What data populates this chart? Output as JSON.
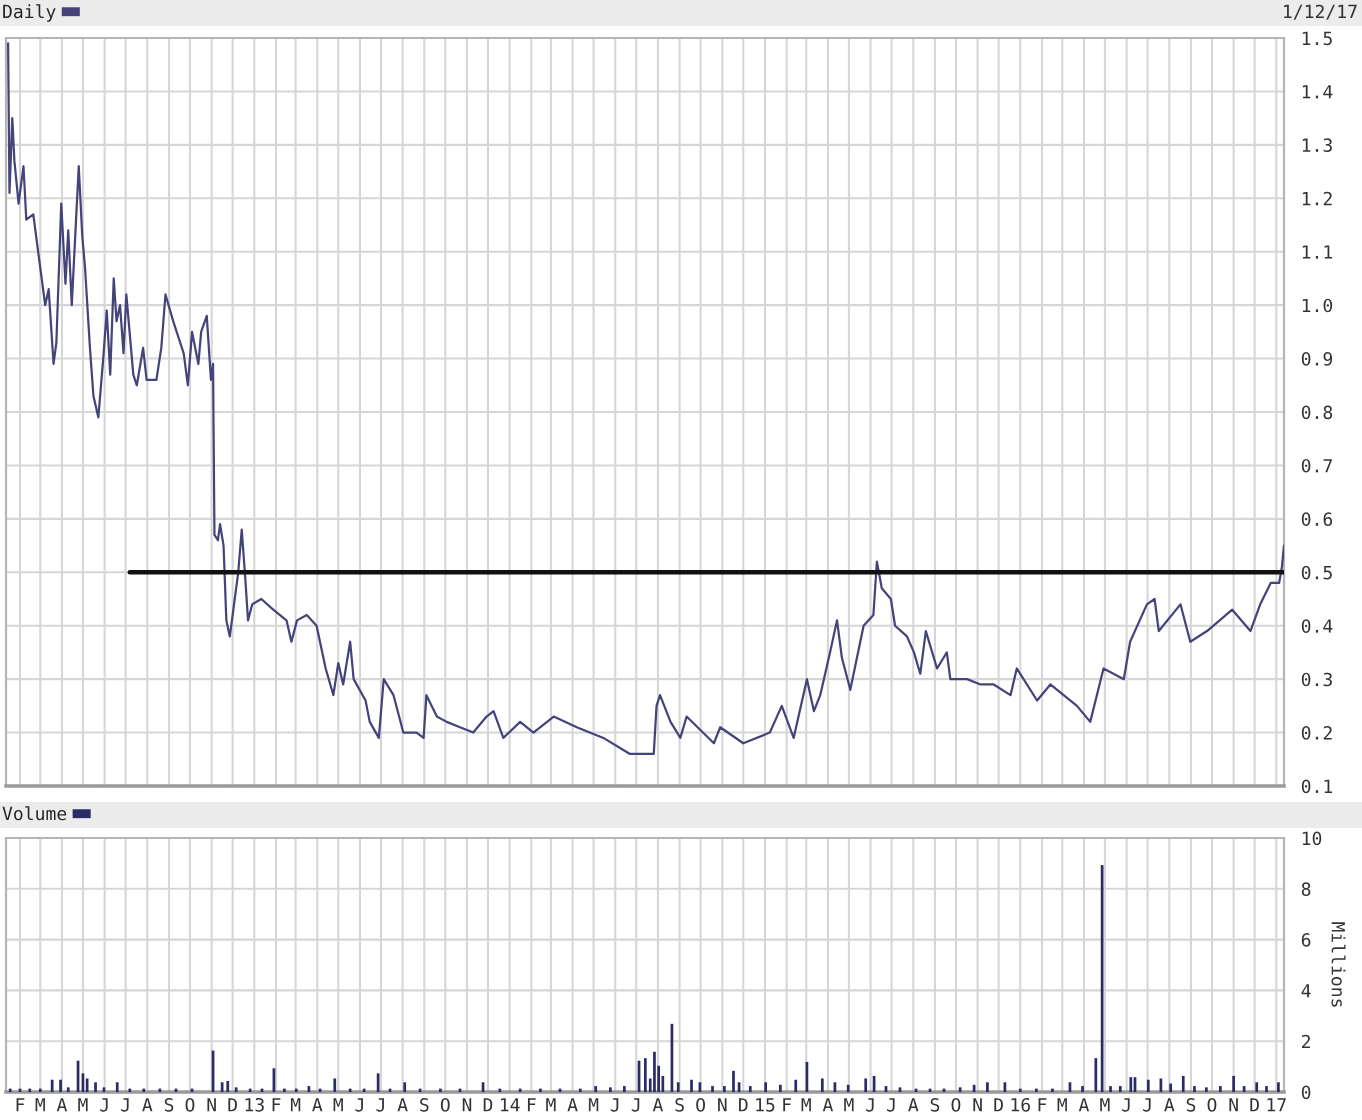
{
  "chart_data": [
    {
      "type": "line",
      "annotations": [
        "1/12/17"
      ],
      "legend": "top left",
      "tick_labels": "y",
      "grid": true,
      "xlim": [
        "2012-01-12",
        "2017-01-12"
      ],
      "xticks": [
        {
          "value": "2012-02",
          "label": null
        },
        {
          "value": "2012-03",
          "label": null
        },
        {
          "value": "2012-04",
          "label": null
        },
        {
          "value": "2012-05",
          "label": null
        },
        {
          "value": "2012-06",
          "label": null
        },
        {
          "value": "2012-07",
          "label": null
        },
        {
          "value": "2012-08",
          "label": null
        },
        {
          "value": "2012-09",
          "label": null
        },
        {
          "value": "2012-10",
          "label": null
        },
        {
          "value": "2012-11",
          "label": null
        },
        {
          "value": "2012-12",
          "label": null
        },
        {
          "value": "2013-01",
          "label": null
        },
        {
          "value": "2013-02",
          "label": null
        },
        {
          "value": "2013-03",
          "label": null
        },
        {
          "value": "2013-04",
          "label": null
        },
        {
          "value": "2013-05",
          "label": null
        },
        {
          "value": "2013-06",
          "label": null
        },
        {
          "value": "2013-07",
          "label": null
        },
        {
          "value": "2013-08",
          "label": null
        },
        {
          "value": "2013-09",
          "label": null
        },
        {
          "value": "2013-10",
          "label": null
        },
        {
          "value": "2013-11",
          "label": null
        },
        {
          "value": "2013-12",
          "label": null
        },
        {
          "value": "2014-01",
          "label": null
        },
        {
          "value": "2014-02",
          "label": null
        },
        {
          "value": "2014-03",
          "label": null
        },
        {
          "value": "2014-04",
          "label": null
        },
        {
          "value": "2014-05",
          "label": null
        },
        {
          "value": "2014-06",
          "label": null
        },
        {
          "value": "2014-07",
          "label": null
        },
        {
          "value": "2014-08",
          "label": null
        },
        {
          "value": "2014-09",
          "label": null
        },
        {
          "value": "2014-10",
          "label": null
        },
        {
          "value": "2014-11",
          "label": null
        },
        {
          "value": "2014-12",
          "label": null
        },
        {
          "value": "2015-01",
          "label": null
        },
        {
          "value": "2015-02",
          "label": null
        },
        {
          "value": "2015-03",
          "label": null
        },
        {
          "value": "2015-04",
          "label": null
        },
        {
          "value": "2015-05",
          "label": null
        },
        {
          "value": "2015-06",
          "label": null
        },
        {
          "value": "2015-07",
          "label": null
        },
        {
          "value": "2015-08",
          "label": null
        },
        {
          "value": "2015-09",
          "label": null
        },
        {
          "value": "2015-10",
          "label": null
        },
        {
          "value": "2015-11",
          "label": null
        },
        {
          "value": "2015-12",
          "label": null
        },
        {
          "value": "2016-01",
          "label": null
        },
        {
          "value": "2016-02",
          "label": null
        },
        {
          "value": "2016-03",
          "label": null
        },
        {
          "value": "2016-04",
          "label": null
        },
        {
          "value": "2016-05",
          "label": null
        },
        {
          "value": "2016-06",
          "label": null
        },
        {
          "value": "2016-07",
          "label": null
        },
        {
          "value": "2016-08",
          "label": null
        },
        {
          "value": "2016-09",
          "label": null
        },
        {
          "value": "2016-10",
          "label": null
        },
        {
          "value": "2016-11",
          "label": null
        },
        {
          "value": "2016-12",
          "label": null
        },
        {
          "value": "2017-01",
          "label": null
        }
      ],
      "ylim": [
        0.1,
        1.5
      ],
      "yticks": [
        0.1,
        0.2,
        0.3,
        0.4,
        0.5,
        0.6,
        0.7,
        0.8,
        0.9,
        {
          "value": 1,
          "label": "1.0"
        },
        1.1,
        1.2,
        1.3,
        1.4,
        1.5
      ],
      "series": [
        {
          "name": "Daily",
          "type": "line",
          "color": "#44447a",
          "x": [
            "2012-01-15",
            "2012-01-17",
            "2012-01-21",
            "2012-01-24",
            "2012-01-30",
            "2012-02-06",
            "2012-02-10",
            "2012-02-20",
            "2012-02-29",
            "2012-03-08",
            "2012-03-13",
            "2012-03-20",
            "2012-03-24",
            "2012-03-31",
            "2012-04-06",
            "2012-04-10",
            "2012-04-15",
            "2012-04-25",
            "2012-04-30",
            "2012-05-04",
            "2012-05-11",
            "2012-05-16",
            "2012-05-23",
            "2012-05-30",
            "2012-06-04",
            "2012-06-09",
            "2012-06-14",
            "2012-06-18",
            "2012-06-23",
            "2012-06-28",
            "2012-07-02",
            "2012-07-12",
            "2012-07-17",
            "2012-07-26",
            "2012-07-31",
            "2012-08-14",
            "2012-08-21",
            "2012-08-27",
            "2012-09-07",
            "2012-09-12",
            "2012-09-22",
            "2012-09-28",
            "2012-10-04",
            "2012-10-13",
            "2012-10-17",
            "2012-10-25",
            "2012-10-31",
            "2012-11-03",
            "2012-11-05",
            "2012-11-10",
            "2012-11-13",
            "2012-11-18",
            "2012-11-22",
            "2012-11-27",
            "2012-12-09",
            "2012-12-14",
            "2012-12-19",
            "2012-12-23",
            "2012-12-29",
            "2013-01-11",
            "2013-01-28",
            "2013-02-16",
            "2013-02-23",
            "2013-03-03",
            "2013-03-17",
            "2013-03-31",
            "2013-04-13",
            "2013-04-24",
            "2013-05-01",
            "2013-05-08",
            "2013-05-18",
            "2013-05-23",
            "2013-06-09",
            "2013-06-15",
            "2013-06-28",
            "2013-07-05",
            "2013-07-19",
            "2013-08-02",
            "2013-08-21",
            "2013-08-31",
            "2013-09-04",
            "2013-09-19",
            "2013-10-03",
            "2013-10-22",
            "2013-11-10",
            "2013-11-29",
            "2013-12-09",
            "2013-12-23",
            "2014-01-16",
            "2014-02-04",
            "2014-03-05",
            "2014-04-07",
            "2014-05-15",
            "2014-06-22",
            "2014-07-26",
            "2014-07-30",
            "2014-08-04",
            "2014-08-19",
            "2014-09-02",
            "2014-09-11",
            "2014-10-20",
            "2014-10-29",
            "2014-12-01",
            "2015-01-08",
            "2015-01-25",
            "2015-02-11",
            "2015-03-02",
            "2015-03-12",
            "2015-03-21",
            "2015-04-04",
            "2015-04-14",
            "2015-04-21",
            "2015-05-03",
            "2015-05-22",
            "2015-06-05",
            "2015-06-10",
            "2015-06-17",
            "2015-06-30",
            "2015-07-06",
            "2015-07-23",
            "2015-08-02",
            "2015-08-11",
            "2015-08-19",
            "2015-09-04",
            "2015-09-18",
            "2015-09-23",
            "2015-10-17",
            "2015-11-05",
            "2015-11-24",
            "2015-12-18",
            "2015-12-27",
            "2016-01-25",
            "2016-02-13",
            "2016-03-22",
            "2016-04-10",
            "2016-04-29",
            "2016-05-28",
            "2016-06-06",
            "2016-06-30",
            "2016-07-11",
            "2016-07-17",
            "2016-08-17",
            "2016-08-31",
            "2016-09-24",
            "2016-10-30",
            "2016-11-25",
            "2016-12-09",
            "2016-12-24",
            "2017-01-05",
            "2017-01-09",
            "2017-01-12"
          ],
          "values": [
            1.49,
            1.21,
            1.35,
            1.27,
            1.19,
            1.26,
            1.16,
            1.17,
            1.08,
            1.0,
            1.03,
            0.89,
            0.93,
            1.19,
            1.04,
            1.14,
            1.0,
            1.26,
            1.13,
            1.07,
            0.92,
            0.83,
            0.79,
            0.9,
            0.99,
            0.87,
            1.05,
            0.97,
            1.0,
            0.91,
            1.02,
            0.87,
            0.85,
            0.92,
            0.86,
            0.86,
            0.92,
            1.02,
            0.97,
            0.95,
            0.91,
            0.85,
            0.95,
            0.89,
            0.95,
            0.98,
            0.86,
            0.89,
            0.57,
            0.56,
            0.59,
            0.55,
            0.41,
            0.38,
            0.5,
            0.58,
            0.49,
            0.41,
            0.44,
            0.45,
            0.43,
            0.41,
            0.37,
            0.41,
            0.42,
            0.4,
            0.32,
            0.27,
            0.33,
            0.29,
            0.37,
            0.3,
            0.26,
            0.22,
            0.19,
            0.3,
            0.27,
            0.2,
            0.2,
            0.19,
            0.27,
            0.23,
            0.22,
            0.21,
            0.2,
            0.23,
            0.24,
            0.19,
            0.22,
            0.2,
            0.23,
            0.21,
            0.19,
            0.16,
            0.16,
            0.25,
            0.27,
            0.22,
            0.19,
            0.23,
            0.18,
            0.21,
            0.18,
            0.2,
            0.25,
            0.19,
            0.3,
            0.24,
            0.27,
            0.35,
            0.41,
            0.34,
            0.28,
            0.4,
            0.42,
            0.52,
            0.47,
            0.45,
            0.4,
            0.38,
            0.35,
            0.31,
            0.39,
            0.32,
            0.35,
            0.3,
            0.3,
            0.29,
            0.29,
            0.27,
            0.32,
            0.26,
            0.29,
            0.25,
            0.22,
            0.32,
            0.3,
            0.37,
            0.44,
            0.45,
            0.39,
            0.44,
            0.37,
            0.39,
            0.43,
            0.39,
            0.44,
            0.48,
            0.48,
            0.51,
            0.55
          ]
        },
        {
          "type": "line",
          "color": "#111111",
          "x": [
            "2012-07-07",
            "2017-01-12"
          ],
          "values": [
            0.5,
            0.5
          ]
        }
      ]
    },
    {
      "type": "bar",
      "ylabel": "Millions",
      "legend": "top left",
      "grid": true,
      "xlim": [
        "2012-01-12",
        "2017-01-12"
      ],
      "xticks": [
        {
          "value": "2012-02",
          "label": "F"
        },
        {
          "value": "2012-03",
          "label": "M"
        },
        {
          "value": "2012-04",
          "label": "A"
        },
        {
          "value": "2012-05",
          "label": "M"
        },
        {
          "value": "2012-06",
          "label": "J"
        },
        {
          "value": "2012-07",
          "label": "J"
        },
        {
          "value": "2012-08",
          "label": "A"
        },
        {
          "value": "2012-09",
          "label": "S"
        },
        {
          "value": "2012-10",
          "label": "O"
        },
        {
          "value": "2012-11",
          "label": "N"
        },
        {
          "value": "2012-12",
          "label": "D"
        },
        {
          "value": "2013-01",
          "label": "13"
        },
        {
          "value": "2013-02",
          "label": "F"
        },
        {
          "value": "2013-03",
          "label": "M"
        },
        {
          "value": "2013-04",
          "label": "A"
        },
        {
          "value": "2013-05",
          "label": "M"
        },
        {
          "value": "2013-06",
          "label": "J"
        },
        {
          "value": "2013-07",
          "label": "J"
        },
        {
          "value": "2013-08",
          "label": "A"
        },
        {
          "value": "2013-09",
          "label": "S"
        },
        {
          "value": "2013-10",
          "label": "O"
        },
        {
          "value": "2013-11",
          "label": "N"
        },
        {
          "value": "2013-12",
          "label": "D"
        },
        {
          "value": "2014-01",
          "label": "14"
        },
        {
          "value": "2014-02",
          "label": "F"
        },
        {
          "value": "2014-03",
          "label": "M"
        },
        {
          "value": "2014-04",
          "label": "A"
        },
        {
          "value": "2014-05",
          "label": "M"
        },
        {
          "value": "2014-06",
          "label": "J"
        },
        {
          "value": "2014-07",
          "label": "J"
        },
        {
          "value": "2014-08",
          "label": "A"
        },
        {
          "value": "2014-09",
          "label": "S"
        },
        {
          "value": "2014-10",
          "label": "O"
        },
        {
          "value": "2014-11",
          "label": "N"
        },
        {
          "value": "2014-12",
          "label": "D"
        },
        {
          "value": "2015-01",
          "label": "15"
        },
        {
          "value": "2015-02",
          "label": "F"
        },
        {
          "value": "2015-03",
          "label": "M"
        },
        {
          "value": "2015-04",
          "label": "A"
        },
        {
          "value": "2015-05",
          "label": "M"
        },
        {
          "value": "2015-06",
          "label": "J"
        },
        {
          "value": "2015-07",
          "label": "J"
        },
        {
          "value": "2015-08",
          "label": "A"
        },
        {
          "value": "2015-09",
          "label": "S"
        },
        {
          "value": "2015-10",
          "label": "O"
        },
        {
          "value": "2015-11",
          "label": "N"
        },
        {
          "value": "2015-12",
          "label": "D"
        },
        {
          "value": "2016-01",
          "label": "16"
        },
        {
          "value": "2016-02",
          "label": "F"
        },
        {
          "value": "2016-03",
          "label": "M"
        },
        {
          "value": "2016-04",
          "label": "A"
        },
        {
          "value": "2016-05",
          "label": "M"
        },
        {
          "value": "2016-06",
          "label": "J"
        },
        {
          "value": "2016-07",
          "label": "J"
        },
        {
          "value": "2016-08",
          "label": "A"
        },
        {
          "value": "2016-09",
          "label": "S"
        },
        {
          "value": "2016-10",
          "label": "O"
        },
        {
          "value": "2016-11",
          "label": "N"
        },
        {
          "value": "2016-12",
          "label": "D"
        },
        {
          "value": "2017-01",
          "label": "17"
        }
      ],
      "ylim": [
        0,
        10
      ],
      "yticks": [
        0,
        2,
        4,
        6,
        8,
        10
      ],
      "series": [
        {
          "name": "Volume",
          "color": "#2b2b66",
          "x": [
            "2012-01-18",
            "2012-02-01",
            "2012-02-15",
            "2012-03-01",
            "2012-03-18",
            "2012-03-30",
            "2012-04-10",
            "2012-04-24",
            "2012-05-01",
            "2012-05-07",
            "2012-05-19",
            "2012-05-31",
            "2012-06-19",
            "2012-07-07",
            "2012-07-27",
            "2012-08-19",
            "2012-09-11",
            "2012-10-04",
            "2012-11-03",
            "2012-11-16",
            "2012-11-24",
            "2012-12-06",
            "2012-12-26",
            "2013-01-12",
            "2013-01-29",
            "2013-02-13",
            "2013-03-02",
            "2013-03-20",
            "2013-04-05",
            "2013-04-26",
            "2013-05-18",
            "2013-06-07",
            "2013-06-27",
            "2013-07-14",
            "2013-08-04",
            "2013-08-26",
            "2013-09-24",
            "2013-10-22",
            "2013-11-24",
            "2013-12-18",
            "2014-01-16",
            "2014-02-14",
            "2014-03-14",
            "2014-04-12",
            "2014-05-04",
            "2014-05-25",
            "2014-06-14",
            "2014-07-05",
            "2014-07-14",
            "2014-07-21",
            "2014-07-27",
            "2014-08-02",
            "2014-08-08",
            "2014-08-21",
            "2014-08-30",
            "2014-09-18",
            "2014-09-30",
            "2014-10-18",
            "2014-11-04",
            "2014-11-17",
            "2014-11-25",
            "2014-12-11",
            "2015-01-02",
            "2015-01-23",
            "2015-02-14",
            "2015-03-02",
            "2015-03-24",
            "2015-04-11",
            "2015-04-30",
            "2015-05-25",
            "2015-06-06",
            "2015-06-23",
            "2015-07-13",
            "2015-08-05",
            "2015-08-25",
            "2015-09-14",
            "2015-10-07",
            "2015-10-27",
            "2015-11-15",
            "2015-12-10",
            "2016-01-01",
            "2016-01-24",
            "2016-02-16",
            "2016-03-12",
            "2016-03-30",
            "2016-04-18",
            "2016-04-27",
            "2016-05-09",
            "2016-05-23",
            "2016-06-07",
            "2016-06-13",
            "2016-07-02",
            "2016-07-20",
            "2016-08-03",
            "2016-08-21",
            "2016-09-06",
            "2016-09-23",
            "2016-10-13",
            "2016-11-01",
            "2016-11-16",
            "2016-12-04",
            "2016-12-18",
            "2017-01-04"
          ],
          "values": [
            0.1,
            0.1,
            0.1,
            0.1,
            0.45,
            0.45,
            0.15,
            1.2,
            0.7,
            0.5,
            0.35,
            0.15,
            0.35,
            0.1,
            0.1,
            0.1,
            0.1,
            0.1,
            1.6,
            0.35,
            0.4,
            0.15,
            0.1,
            0.1,
            0.9,
            0.1,
            0.1,
            0.2,
            0.1,
            0.5,
            0.1,
            0.1,
            0.7,
            0.1,
            0.35,
            0.1,
            0.1,
            0.1,
            0.35,
            0.1,
            0.1,
            0.1,
            0.1,
            0.1,
            0.2,
            0.15,
            0.2,
            1.2,
            1.3,
            0.5,
            1.55,
            1.0,
            0.6,
            2.65,
            0.35,
            0.45,
            0.35,
            0.2,
            0.2,
            0.8,
            0.35,
            0.2,
            0.35,
            0.25,
            0.45,
            1.15,
            0.5,
            0.35,
            0.25,
            0.5,
            0.6,
            0.2,
            0.15,
            0.1,
            0.1,
            0.1,
            0.15,
            0.25,
            0.35,
            0.35,
            0.1,
            0.1,
            0.1,
            0.35,
            0.2,
            1.3,
            8.9,
            0.2,
            0.2,
            0.55,
            0.55,
            0.45,
            0.5,
            0.3,
            0.6,
            0.2,
            0.15,
            0.2,
            0.6,
            0.2,
            0.35,
            0.2,
            0.35
          ]
        }
      ]
    }
  ]
}
